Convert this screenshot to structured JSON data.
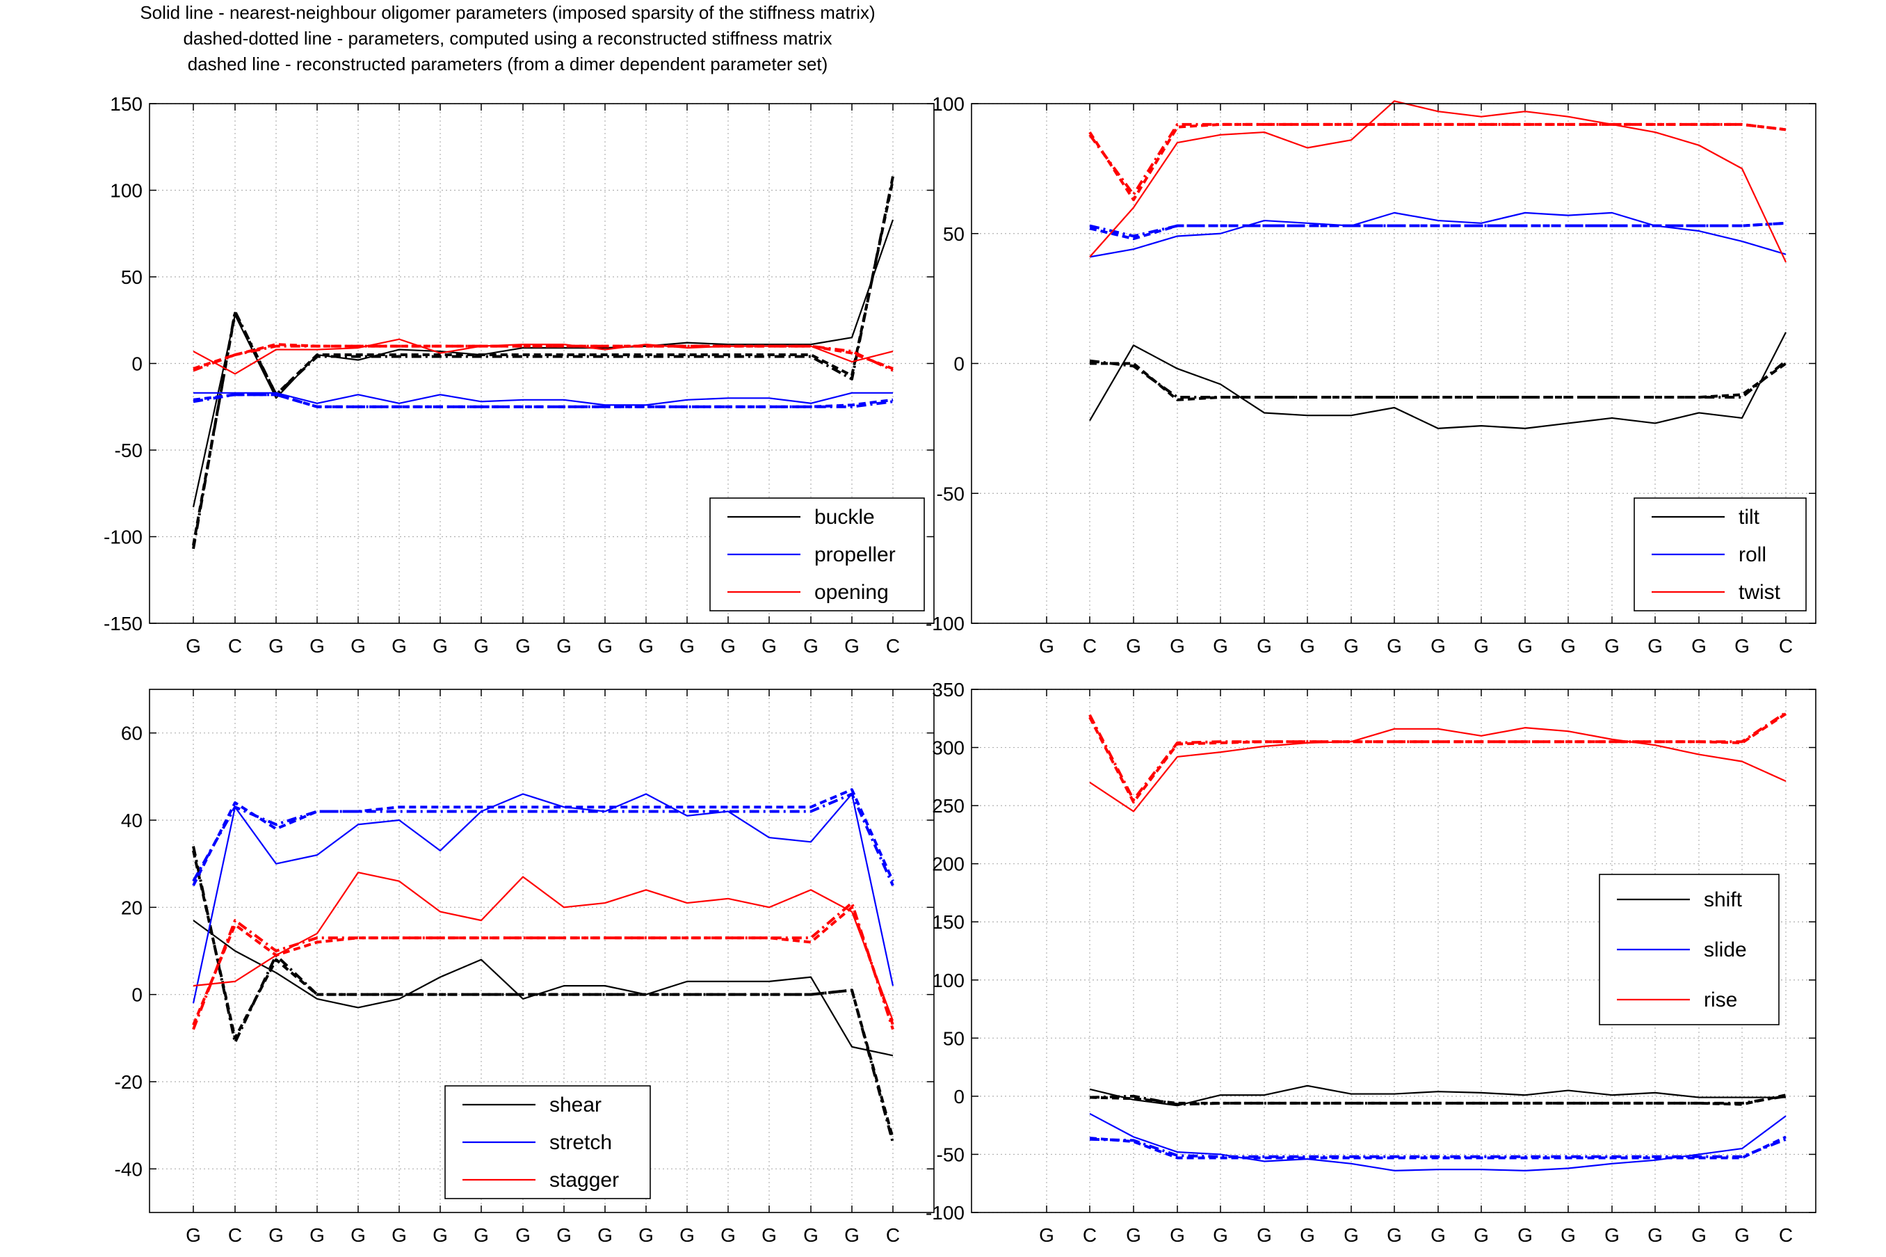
{
  "title_lines": [
    "Solid line - nearest-neighbour oligomer parameters (imposed sparsity of the stiffness matrix)",
    "dashed-dotted line - parameters, computed using a reconstructed stiffness matrix",
    "dashed line - reconstructed parameters (from a dimer dependent parameter set)"
  ],
  "colors": {
    "black": "#000000",
    "blue": "#0000ff",
    "red": "#ff0000",
    "grid": "#b0b0b0"
  },
  "line_styles": {
    "solid": "nearest-neighbour oligomer parameters",
    "dashdot": "parameters, computed using a reconstructed stiffness matrix",
    "dashed": "reconstructed parameters"
  },
  "chart_data": [
    {
      "type": "line",
      "position": "top-left",
      "categories": [
        "G",
        "C",
        "G",
        "G",
        "G",
        "G",
        "G",
        "G",
        "G",
        "G",
        "G",
        "G",
        "G",
        "G",
        "G",
        "G",
        "G",
        "C"
      ],
      "ylim": [
        -150,
        150
      ],
      "yticks": [
        -150,
        -100,
        -50,
        0,
        50,
        100,
        150
      ],
      "grid": true,
      "legend_position": "bottom-right",
      "series": [
        {
          "name": "buckle",
          "color": "#000000",
          "solid": [
            -83,
            28,
            -20,
            5,
            2,
            8,
            7,
            5,
            9,
            9,
            9,
            10,
            12,
            11,
            11,
            11,
            15,
            83
          ],
          "dashdot": [
            -107,
            30,
            -18,
            4,
            4,
            4,
            4,
            4,
            4,
            4,
            4,
            4,
            4,
            4,
            4,
            4,
            -9,
            108
          ],
          "dashed": [
            -105,
            29,
            -18,
            5,
            5,
            5,
            5,
            5,
            5,
            5,
            5,
            5,
            5,
            5,
            5,
            5,
            -7,
            106
          ]
        },
        {
          "name": "propeller",
          "color": "#0000ff",
          "solid": [
            -17,
            -17,
            -17,
            -23,
            -18,
            -23,
            -18,
            -22,
            -21,
            -21,
            -24,
            -24,
            -21,
            -20,
            -20,
            -23,
            -17,
            -17
          ],
          "dashdot": [
            -22,
            -18,
            -18,
            -25,
            -25,
            -25,
            -25,
            -25,
            -25,
            -25,
            -25,
            -25,
            -25,
            -25,
            -25,
            -25,
            -25,
            -22
          ],
          "dashed": [
            -21,
            -18,
            -18,
            -25,
            -25,
            -25,
            -25,
            -25,
            -25,
            -25,
            -25,
            -25,
            -25,
            -25,
            -25,
            -25,
            -24,
            -21
          ]
        },
        {
          "name": "opening",
          "color": "#ff0000",
          "solid": [
            7,
            -6,
            8,
            8,
            9,
            14,
            6,
            10,
            11,
            11,
            8,
            11,
            9,
            10,
            10,
            10,
            1,
            7
          ],
          "dashdot": [
            -4,
            5,
            10,
            10,
            10,
            10,
            10,
            10,
            10,
            10,
            10,
            10,
            10,
            10,
            10,
            10,
            7,
            -4
          ],
          "dashed": [
            -3,
            5,
            11,
            10,
            10,
            10,
            10,
            10,
            10,
            10,
            10,
            10,
            10,
            10,
            10,
            10,
            6,
            -3
          ]
        }
      ],
      "legend": [
        "buckle",
        "propeller",
        "opening"
      ]
    },
    {
      "type": "line",
      "position": "top-right",
      "categories": [
        "G",
        "C",
        "G",
        "G",
        "G",
        "G",
        "G",
        "G",
        "G",
        "G",
        "G",
        "G",
        "G",
        "G",
        "G",
        "G",
        "G",
        "C"
      ],
      "ylim": [
        -100,
        100
      ],
      "yticks": [
        -100,
        -50,
        0,
        50,
        100
      ],
      "grid": true,
      "legend_position": "bottom-right",
      "series": [
        {
          "name": "tilt",
          "color": "#000000",
          "solid": [
            -22,
            7,
            -2,
            -8,
            -19,
            -20,
            -20,
            -17,
            -25,
            -24,
            -25,
            -23,
            -21,
            -23,
            -19,
            -21,
            12
          ],
          "dashdot": [
            1,
            -1,
            -13,
            -13,
            -13,
            -13,
            -13,
            -13,
            -13,
            -13,
            -13,
            -13,
            -13,
            -13,
            -13,
            -13,
            1
          ],
          "dashed": [
            0,
            0,
            -14,
            -13,
            -13,
            -13,
            -13,
            -13,
            -13,
            -13,
            -13,
            -13,
            -13,
            -13,
            -13,
            -12,
            0
          ]
        },
        {
          "name": "roll",
          "color": "#0000ff",
          "solid": [
            41,
            44,
            49,
            50,
            55,
            54,
            53,
            58,
            55,
            54,
            58,
            57,
            58,
            53,
            51,
            47,
            42
          ],
          "dashdot": [
            53,
            49,
            53,
            53,
            53,
            53,
            53,
            53,
            53,
            53,
            53,
            53,
            53,
            53,
            53,
            53,
            54
          ],
          "dashed": [
            52,
            48,
            53,
            53,
            53,
            53,
            53,
            53,
            53,
            53,
            53,
            53,
            53,
            53,
            53,
            53,
            54
          ]
        },
        {
          "name": "twist",
          "color": "#ff0000",
          "solid": [
            41,
            60,
            85,
            88,
            89,
            83,
            86,
            101,
            97,
            95,
            97,
            95,
            92,
            89,
            84,
            75,
            39
          ],
          "dashdot": [
            88,
            65,
            92,
            92,
            92,
            92,
            92,
            92,
            92,
            92,
            92,
            92,
            92,
            92,
            92,
            92,
            90
          ],
          "dashed": [
            89,
            63,
            91,
            92,
            92,
            92,
            92,
            92,
            92,
            92,
            92,
            92,
            92,
            92,
            92,
            92,
            90
          ]
        }
      ],
      "legend": [
        "tilt",
        "roll",
        "twist"
      ]
    },
    {
      "type": "line",
      "position": "bottom-left",
      "categories": [
        "G",
        "C",
        "G",
        "G",
        "G",
        "G",
        "G",
        "G",
        "G",
        "G",
        "G",
        "G",
        "G",
        "G",
        "G",
        "G",
        "G",
        "C"
      ],
      "ylim": [
        -50,
        70
      ],
      "yticks": [
        -40,
        -20,
        0,
        20,
        40,
        60
      ],
      "grid": true,
      "legend_position": "bottom-center",
      "series": [
        {
          "name": "shear",
          "color": "#000000",
          "solid": [
            17,
            10,
            5,
            -1,
            -3,
            -1,
            4,
            8,
            -1,
            2,
            2,
            0,
            3,
            3,
            3,
            4,
            -12,
            -14
          ],
          "dashdot": [
            34,
            -11,
            9,
            0,
            0,
            0,
            0,
            0,
            0,
            0,
            0,
            0,
            0,
            0,
            0,
            0,
            1,
            -34
          ],
          "dashed": [
            33,
            -10,
            8,
            0,
            0,
            0,
            0,
            0,
            0,
            0,
            0,
            0,
            0,
            0,
            0,
            0,
            1,
            -33
          ]
        },
        {
          "name": "stretch",
          "color": "#0000ff",
          "solid": [
            -2,
            43,
            30,
            32,
            39,
            40,
            33,
            42,
            46,
            43,
            42,
            46,
            41,
            42,
            36,
            35,
            46,
            2
          ],
          "dashdot": [
            26,
            43,
            39,
            42,
            42,
            42,
            42,
            42,
            42,
            42,
            42,
            42,
            42,
            42,
            42,
            42,
            46,
            25
          ],
          "dashed": [
            25,
            44,
            38,
            42,
            42,
            43,
            43,
            43,
            43,
            43,
            43,
            43,
            43,
            43,
            43,
            43,
            47,
            26
          ]
        },
        {
          "name": "stagger",
          "color": "#ff0000",
          "solid": [
            2,
            3,
            9,
            14,
            28,
            26,
            19,
            17,
            27,
            20,
            21,
            24,
            21,
            22,
            20,
            24,
            19,
            -6
          ],
          "dashdot": [
            -8,
            17,
            10,
            13,
            13,
            13,
            13,
            13,
            13,
            13,
            13,
            13,
            13,
            13,
            13,
            13,
            21,
            -8
          ],
          "dashed": [
            -7,
            16,
            9,
            12,
            13,
            13,
            13,
            13,
            13,
            13,
            13,
            13,
            13,
            13,
            13,
            12,
            20,
            -7
          ]
        }
      ],
      "legend": [
        "shear",
        "stretch",
        "stagger"
      ]
    },
    {
      "type": "line",
      "position": "bottom-right",
      "categories": [
        "G",
        "C",
        "G",
        "G",
        "G",
        "G",
        "G",
        "G",
        "G",
        "G",
        "G",
        "G",
        "G",
        "G",
        "G",
        "G",
        "G",
        "C"
      ],
      "ylim": [
        -100,
        350
      ],
      "yticks": [
        -100,
        -50,
        0,
        50,
        100,
        150,
        200,
        250,
        300,
        350
      ],
      "grid": true,
      "legend_position": "middle-right",
      "series": [
        {
          "name": "shift",
          "color": "#000000",
          "solid": [
            6,
            -3,
            -8,
            1,
            1,
            9,
            2,
            2,
            4,
            3,
            1,
            5,
            1,
            3,
            -1,
            -1,
            -1
          ],
          "dashdot": [
            -1,
            0,
            -7,
            -6,
            -6,
            -6,
            -6,
            -6,
            -6,
            -6,
            -6,
            -6,
            -6,
            -6,
            -6,
            -6,
            0
          ],
          "dashed": [
            -1,
            -2,
            -6,
            -6,
            -6,
            -6,
            -6,
            -6,
            -6,
            -6,
            -6,
            -6,
            -6,
            -6,
            -6,
            -7,
            1
          ]
        },
        {
          "name": "slide",
          "color": "#0000ff",
          "solid": [
            -15,
            -35,
            -48,
            -50,
            -56,
            -54,
            -58,
            -64,
            -63,
            -63,
            -64,
            -62,
            -58,
            -55,
            -50,
            -45,
            -17
          ],
          "dashdot": [
            -37,
            -38,
            -51,
            -52,
            -52,
            -52,
            -52,
            -52,
            -52,
            -52,
            -52,
            -52,
            -52,
            -52,
            -52,
            -52,
            -37
          ],
          "dashed": [
            -36,
            -39,
            -53,
            -53,
            -53,
            -53,
            -53,
            -53,
            -53,
            -53,
            -53,
            -53,
            -53,
            -53,
            -53,
            -53,
            -35
          ]
        },
        {
          "name": "rise",
          "color": "#ff0000",
          "solid": [
            270,
            245,
            292,
            296,
            301,
            304,
            305,
            316,
            316,
            310,
            317,
            314,
            307,
            302,
            294,
            288,
            271
          ],
          "dashdot": [
            328,
            255,
            304,
            305,
            305,
            305,
            305,
            305,
            305,
            305,
            305,
            305,
            305,
            305,
            305,
            305,
            330
          ],
          "dashed": [
            326,
            253,
            303,
            304,
            305,
            305,
            305,
            305,
            305,
            305,
            305,
            305,
            305,
            305,
            305,
            304,
            329
          ]
        }
      ],
      "legend": [
        "shift",
        "slide",
        "rise"
      ]
    }
  ]
}
